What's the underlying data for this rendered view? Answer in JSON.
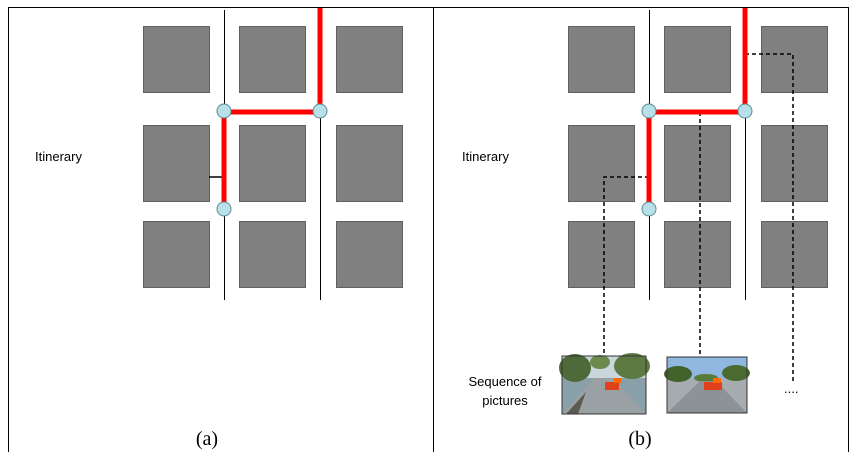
{
  "panels": [
    {
      "caption": "(a)",
      "itinerary_label": "Itinerary"
    },
    {
      "caption": "(b)",
      "itinerary_label": "Itinerary",
      "pictures_label_line1": "Sequence of",
      "pictures_label_line2": "pictures",
      "ellipsis": "...."
    }
  ],
  "colors": {
    "block": "#808080",
    "block_border": "#606060",
    "route": "#ff0000",
    "node_fill": "#b8e0e8",
    "node_stroke": "#5a8a96",
    "street": "#000000"
  },
  "icons": [
    "street-photo-icon",
    "street-photo-icon"
  ]
}
